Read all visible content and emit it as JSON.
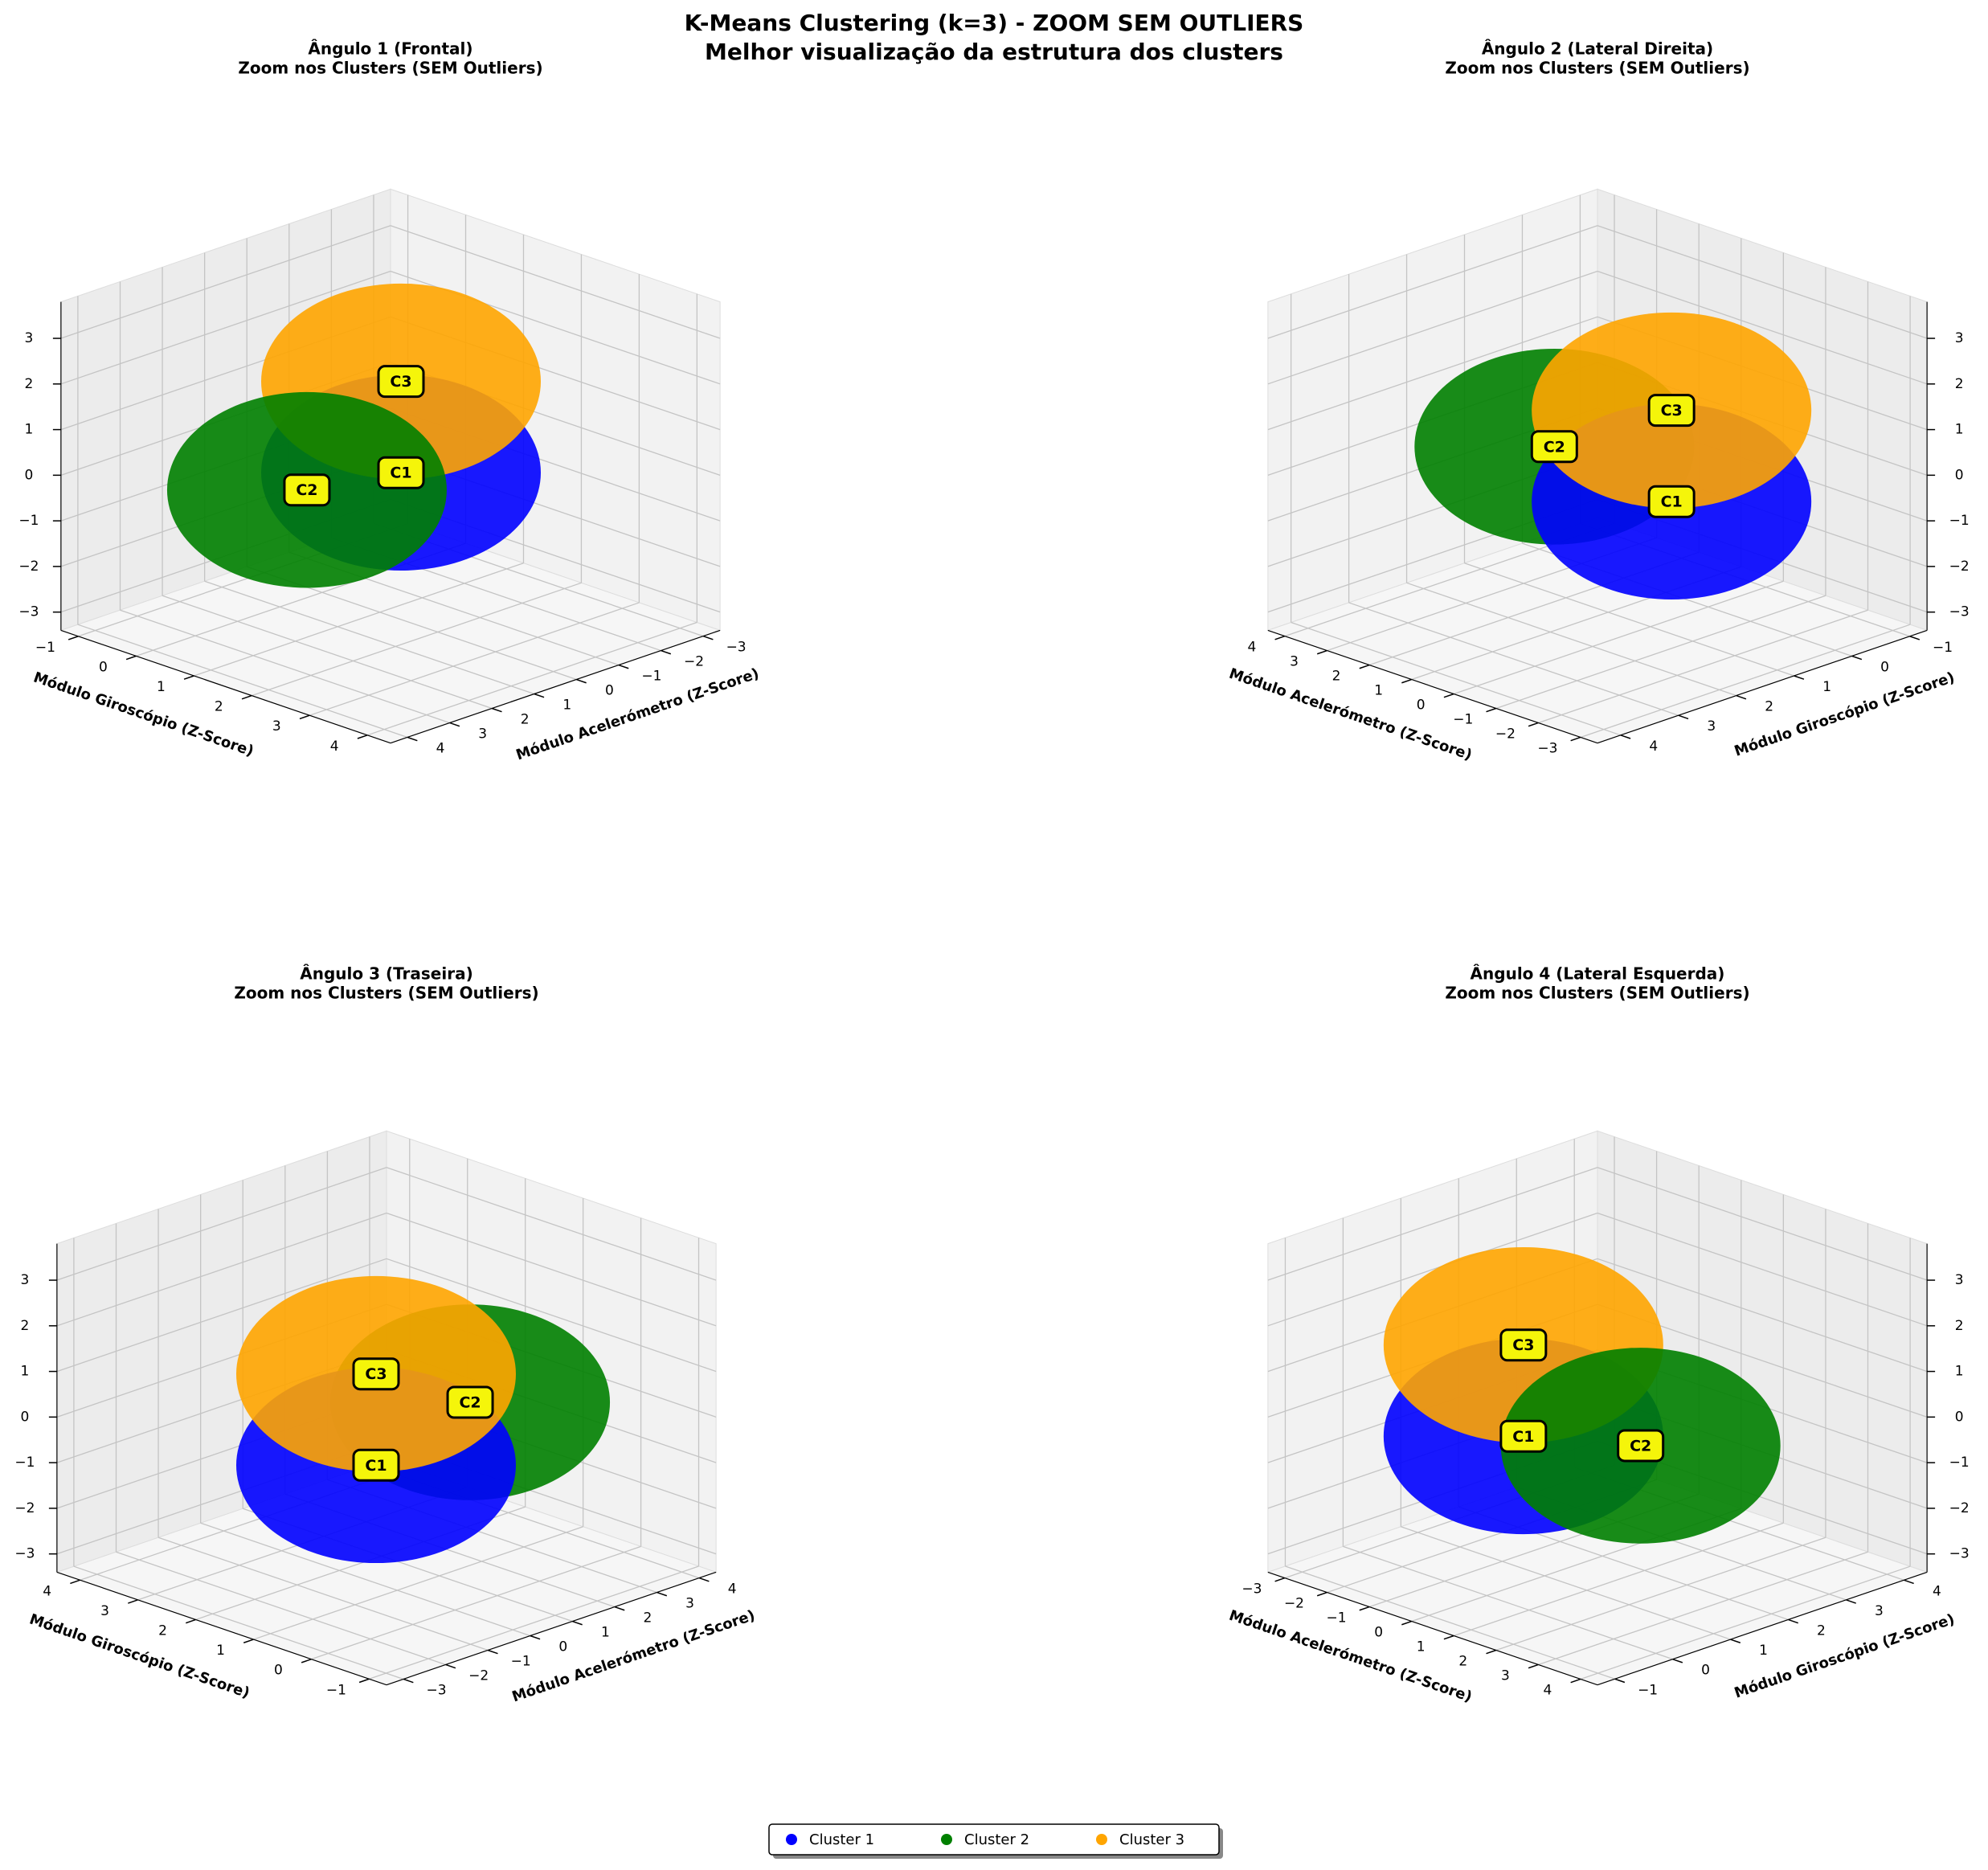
{
  "chart_data": {
    "type": "scatter3d",
    "title": "K-Means Clustering (k=3) - ZOOM SEM OUTLIERS",
    "subtitle": "Melhor visualização da estrutura dos clusters",
    "view_subtitle": "Zoom nos Clusters (SEM Outliers)",
    "xlabel": "Módulo Acelerómetro (Z-Score)",
    "ylabel": "Módulo Giroscópio (Z-Score)",
    "xlim": [
      -3.4,
      4.4
    ],
    "xticks": [
      {
        "value": -3,
        "label": "−3"
      },
      {
        "value": -2,
        "label": "−2"
      },
      {
        "value": -1,
        "label": "−1"
      },
      0,
      1,
      2,
      3,
      4
    ],
    "ylim": [
      -1.3,
      4.4
    ],
    "yticks": [
      {
        "value": -1,
        "label": "−1"
      },
      0,
      1,
      2,
      3,
      4
    ],
    "zlim": [
      -3.4,
      3.8
    ],
    "zticks": [
      {
        "value": -3,
        "label": "−3"
      },
      {
        "value": -2,
        "label": "−2"
      },
      {
        "value": -1,
        "label": "−1"
      },
      0,
      1,
      2,
      3
    ],
    "grid": true,
    "legend": "lower center",
    "views": [
      {
        "title": "Ângulo 1 (Frontal)",
        "elev": 20,
        "azim": 45,
        "zaxis": "left"
      },
      {
        "title": "Ângulo 2 (Lateral Direita)",
        "elev": 20,
        "azim": 135,
        "zaxis": "right"
      },
      {
        "title": "Ângulo 3 (Traseira)",
        "elev": 20,
        "azim": 225,
        "zaxis": "left"
      },
      {
        "title": "Ângulo 4 (Lateral Esquerda)",
        "elev": 20,
        "azim": 315,
        "zaxis": "right"
      }
    ],
    "series": [
      {
        "name": "Cluster 1",
        "label": "C1",
        "color": "#0000ff",
        "x": [
          -0.5
        ],
        "y": [
          1
        ],
        "z": [
          -0.5
        ]
      },
      {
        "name": "Cluster 2",
        "label": "C2",
        "color": "#008000",
        "x": [
          2
        ],
        "y": [
          1.2
        ],
        "z": [
          0
        ]
      },
      {
        "name": "Cluster 3",
        "label": "C3",
        "color": "#ffa500",
        "x": [
          -0.5
        ],
        "y": [
          1
        ],
        "z": [
          1.5
        ]
      }
    ]
  }
}
